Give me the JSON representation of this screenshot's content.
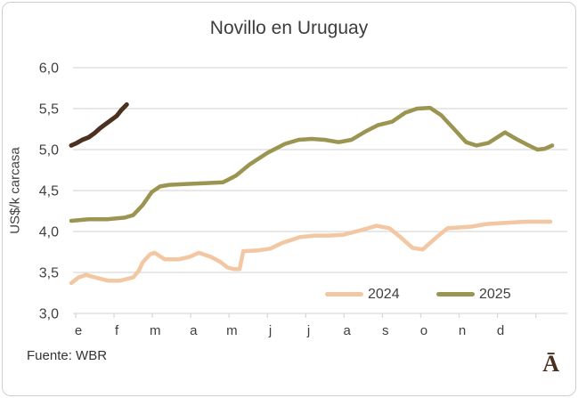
{
  "title": "Novillo en Uruguay",
  "source": "Fuente: WBR",
  "logo": "Ā",
  "legend": [
    {
      "label": "2024",
      "color": "#f2c7a2"
    },
    {
      "label": "2025",
      "color": "#9b9551"
    }
  ],
  "colors": {
    "grid": "#d9d9d9",
    "axis_text": "#3f3f3f",
    "series_2024": "#f2c7a2",
    "series_2025": "#9b9551",
    "series_dark": "#4c3121"
  },
  "chart_data": {
    "type": "line",
    "title": "Novillo en Uruguay",
    "xlabel": "",
    "ylabel": "US$/k carcasa",
    "ylim": [
      3.0,
      6.0
    ],
    "x_domain_weeks": [
      0,
      52
    ],
    "grid": true,
    "legend_position": "inside-bottom-right",
    "y_ticks": [
      {
        "label": "6,0",
        "value": 6.0
      },
      {
        "label": "5,5",
        "value": 5.5
      },
      {
        "label": "5,0",
        "value": 5.0
      },
      {
        "label": "4,5",
        "value": 4.5
      },
      {
        "label": "4,0",
        "value": 4.0
      },
      {
        "label": "3,5",
        "value": 3.5
      },
      {
        "label": "3,0",
        "value": 3.0
      }
    ],
    "x_labels": [
      "e",
      "f",
      "m",
      "a",
      "m",
      "j",
      "j",
      "a",
      "s",
      "o",
      "n",
      "d"
    ],
    "series": [
      {
        "name": "2024",
        "color": "#f2c7a2",
        "in_legend": true,
        "points": [
          [
            0,
            3.37
          ],
          [
            0.8,
            3.44
          ],
          [
            1.6,
            3.47
          ],
          [
            2.9,
            3.43
          ],
          [
            4.0,
            3.4
          ],
          [
            5.3,
            3.4
          ],
          [
            6.7,
            3.44
          ],
          [
            7.3,
            3.52
          ],
          [
            7.7,
            3.62
          ],
          [
            8.5,
            3.72
          ],
          [
            9.0,
            3.74
          ],
          [
            10.1,
            3.66
          ],
          [
            11.6,
            3.66
          ],
          [
            12.8,
            3.69
          ],
          [
            13.8,
            3.74
          ],
          [
            15.1,
            3.69
          ],
          [
            16.1,
            3.63
          ],
          [
            16.9,
            3.56
          ],
          [
            17.6,
            3.54
          ],
          [
            18.2,
            3.54
          ],
          [
            18.6,
            3.76
          ],
          [
            20.2,
            3.77
          ],
          [
            21.5,
            3.79
          ],
          [
            22.8,
            3.86
          ],
          [
            24.7,
            3.93
          ],
          [
            26.3,
            3.95
          ],
          [
            27.9,
            3.95
          ],
          [
            29.4,
            3.96
          ],
          [
            30.8,
            4.0
          ],
          [
            32.1,
            4.04
          ],
          [
            33.0,
            4.07
          ],
          [
            34.4,
            4.04
          ],
          [
            35.6,
            3.93
          ],
          [
            36.9,
            3.8
          ],
          [
            38.0,
            3.78
          ],
          [
            39.5,
            3.93
          ],
          [
            40.7,
            4.04
          ],
          [
            42.1,
            4.05
          ],
          [
            43.3,
            4.06
          ],
          [
            44.8,
            4.09
          ],
          [
            46.2,
            4.1
          ],
          [
            47.6,
            4.11
          ],
          [
            49.1,
            4.12
          ],
          [
            50.5,
            4.12
          ],
          [
            51.8,
            4.12
          ]
        ]
      },
      {
        "name": "2025",
        "color": "#9b9551",
        "in_legend": true,
        "points": [
          [
            0,
            4.13
          ],
          [
            1.9,
            4.15
          ],
          [
            3.9,
            4.15
          ],
          [
            5.8,
            4.17
          ],
          [
            6.7,
            4.2
          ],
          [
            7.7,
            4.32
          ],
          [
            8.7,
            4.48
          ],
          [
            9.6,
            4.55
          ],
          [
            10.6,
            4.57
          ],
          [
            12.5,
            4.58
          ],
          [
            14.4,
            4.59
          ],
          [
            16.4,
            4.6
          ],
          [
            17.8,
            4.68
          ],
          [
            19.3,
            4.82
          ],
          [
            21.2,
            4.96
          ],
          [
            23.1,
            5.07
          ],
          [
            24.6,
            5.12
          ],
          [
            26.0,
            5.13
          ],
          [
            27.4,
            5.12
          ],
          [
            28.9,
            5.09
          ],
          [
            30.3,
            5.12
          ],
          [
            31.8,
            5.22
          ],
          [
            33.2,
            5.3
          ],
          [
            34.7,
            5.34
          ],
          [
            36.1,
            5.45
          ],
          [
            37.4,
            5.5
          ],
          [
            38.8,
            5.51
          ],
          [
            40.0,
            5.42
          ],
          [
            41.4,
            5.25
          ],
          [
            42.7,
            5.09
          ],
          [
            43.8,
            5.05
          ],
          [
            45.1,
            5.08
          ],
          [
            46.2,
            5.16
          ],
          [
            46.9,
            5.21
          ],
          [
            48.1,
            5.13
          ],
          [
            49.3,
            5.06
          ],
          [
            50.4,
            5.0
          ],
          [
            51.2,
            5.01
          ],
          [
            52.0,
            5.05
          ]
        ]
      },
      {
        "name": "",
        "color": "#4c3121",
        "in_legend": false,
        "points": [
          [
            0,
            5.05
          ],
          [
            0.6,
            5.08
          ],
          [
            1.2,
            5.12
          ],
          [
            1.9,
            5.15
          ],
          [
            2.5,
            5.2
          ],
          [
            3.1,
            5.26
          ],
          [
            3.7,
            5.31
          ],
          [
            4.3,
            5.36
          ],
          [
            4.9,
            5.41
          ],
          [
            5.4,
            5.48
          ],
          [
            6.0,
            5.55
          ]
        ]
      }
    ]
  }
}
